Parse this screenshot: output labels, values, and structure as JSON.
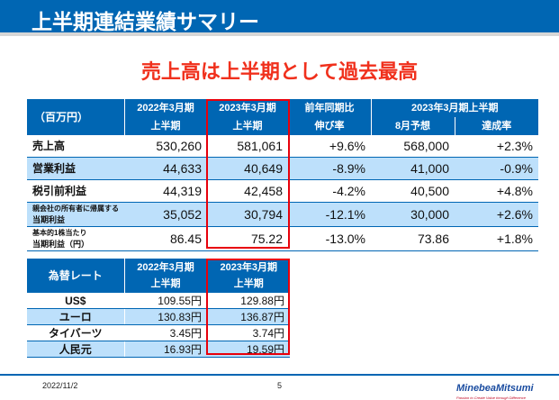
{
  "header": {
    "title": "上半期連結業績サマリー"
  },
  "headline": "売上高は上半期として過去最高",
  "summary": {
    "unit": "（百万円）",
    "col1": [
      "2022年3月期",
      "上半期"
    ],
    "col2": [
      "2023年3月期",
      "上半期"
    ],
    "col3": [
      "前年同期比",
      "伸び率"
    ],
    "group": "2023年3月期上半期",
    "col4": "8月予想",
    "col5": "達成率",
    "rows": [
      {
        "label": "売上高",
        "v": [
          "530,260",
          "581,061",
          "+9.6%",
          "568,000",
          "+2.3%"
        ]
      },
      {
        "label": "営業利益",
        "v": [
          "44,633",
          "40,649",
          "-8.9%",
          "41,000",
          "-0.9%"
        ]
      },
      {
        "label": "税引前利益",
        "v": [
          "44,319",
          "42,458",
          "-4.2%",
          "40,500",
          "+4.8%"
        ]
      },
      {
        "label": "親会社の所有者に帰属する",
        "label2": "当期利益",
        "v": [
          "35,052",
          "30,794",
          "-12.1%",
          "30,000",
          "+2.6%"
        ]
      },
      {
        "label": "基本的1株当たり",
        "label2": "当期利益（円）",
        "v": [
          "86.45",
          "75.22",
          "-13.0%",
          "73.86",
          "+1.8%"
        ]
      }
    ]
  },
  "fx": {
    "header": "為替レート",
    "col1": [
      "2022年3月期",
      "上半期"
    ],
    "col2": [
      "2023年3月期",
      "上半期"
    ],
    "rows": [
      {
        "label": "US$",
        "v": [
          "109.55円",
          "129.88円"
        ]
      },
      {
        "label": "ユーロ",
        "v": [
          "130.83円",
          "136.87円"
        ]
      },
      {
        "label": "タイバーツ",
        "v": [
          "3.45円",
          "3.74円"
        ]
      },
      {
        "label": "人民元",
        "v": [
          "16.93円",
          "19.59円"
        ]
      }
    ]
  },
  "footer": {
    "date": "2022/11/2",
    "page": "5",
    "logo": "MinebeaMitsumi",
    "tagline": "Passion to Create Value through Difference"
  },
  "colors": {
    "brand": "#0066b3",
    "accent": "#f0301c",
    "highlight": "#e8000b",
    "row_alt": "#bde0fb"
  }
}
